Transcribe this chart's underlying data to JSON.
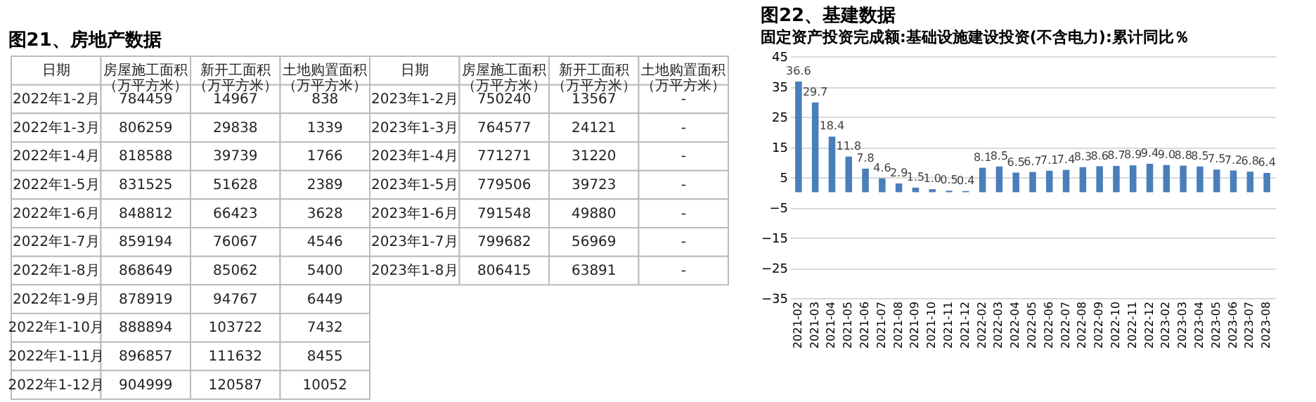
{
  "chart_data": [
    {
      "type": "other",
      "title": "图21、房地产数据",
      "annotations": [
        "日期",
        "房屋施工面积（万平方米）",
        "新开工面积（万平方米）",
        "土地购置面积（万平方米）",
        "2022年1-2月",
        "784459",
        "14967",
        "838",
        "2022年1-3月",
        "806259",
        "29838",
        "1339",
        "2022年1-4月",
        "818588",
        "39739",
        "1766",
        "2022年1-5月",
        "831525",
        "51628",
        "2389",
        "2022年1-6月",
        "848812",
        "66423",
        "3628",
        "2022年1-7月",
        "859194",
        "76067",
        "4546",
        "2022年1-8月",
        "868649",
        "85062",
        "5400",
        "2022年1-9月",
        "878919",
        "94767",
        "6449",
        "2022年1-10月",
        "888894",
        "103722",
        "7432",
        "2022年1-11月",
        "896857",
        "111632",
        "8455",
        "2022年1-12月",
        "904999",
        "120587",
        "10052",
        "日期",
        "房屋施工面积（万平方米）",
        "新开工面积（万平方米）",
        "土地购置面积（万平方米）",
        "2023年1-2月",
        "750240",
        "13567",
        "-",
        "2023年1-3月",
        "764577",
        "24121",
        "-",
        "2023年1-4月",
        "771271",
        "31220",
        "-",
        "2023年1-5月",
        "779506",
        "39723",
        "-",
        "2023年1-6月",
        "791548",
        "49880",
        "-",
        "2023年1-7月",
        "799682",
        "56969",
        "-",
        "2023年1-8月",
        "806415",
        "63891",
        "-"
      ]
    },
    {
      "type": "bar",
      "title": "图22、基建数据",
      "subtitle": "固定资产投资完成额:基础设施建设投资(不含电力):累计同比％",
      "categories": [
        "2021-02",
        "2021-03",
        "2021-04",
        "2021-05",
        "2021-06",
        "2021-07",
        "2021-08",
        "2021-09",
        "2021-10",
        "2021-11",
        "2021-12",
        "2022-02",
        "2022-03",
        "2022-04",
        "2022-05",
        "2022-06",
        "2022-07",
        "2022-08",
        "2022-09",
        "2022-10",
        "2022-11",
        "2022-12",
        "2023-02",
        "2023-03",
        "2023-04",
        "2023-05",
        "2023-06",
        "2023-07",
        "2023-08"
      ],
      "values": [
        36.6,
        29.7,
        18.4,
        11.8,
        7.8,
        4.6,
        2.9,
        1.5,
        1.0,
        0.5,
        0.4,
        8.1,
        8.5,
        6.5,
        6.7,
        7.1,
        7.4,
        8.3,
        8.6,
        8.7,
        8.9,
        9.4,
        9.0,
        8.8,
        8.5,
        7.5,
        7.2,
        6.8,
        6.4
      ],
      "value_labels": [
        "36.6",
        "29.7",
        "18.4",
        "11.8",
        "7.8",
        "4.6",
        "2.9",
        "1.5",
        "1.0",
        "0.5",
        "0.4",
        "8.1",
        "8.5",
        "6.5",
        "6.7",
        "7.1",
        "7.4",
        "8.3",
        "8.6",
        "8.7",
        "8.9",
        "9.4",
        "9.0",
        "8.8",
        "8.5",
        "7.5",
        "7.2",
        "6.8",
        "6.4"
      ],
      "color": "#4a7ebb",
      "ylim": [
        -35,
        45
      ],
      "yticks": [
        -35,
        -25,
        -15,
        -5,
        5,
        15,
        25,
        35,
        45
      ],
      "grid": "y"
    }
  ]
}
